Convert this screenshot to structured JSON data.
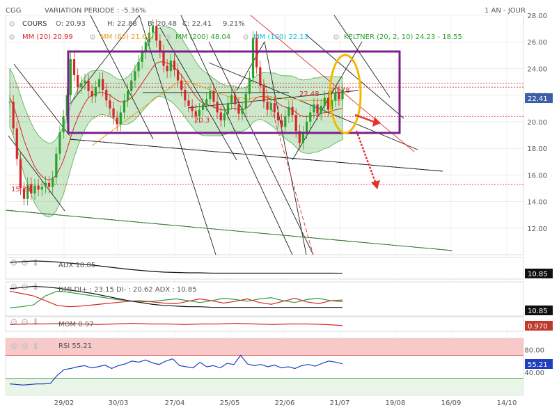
{
  "header": {
    "symbol": "CGG",
    "variation": "VARIATION PERIODE : -5.36%",
    "period": "1 AN - JOUR",
    "cours_label": "COURS",
    "open": "O: 20.93",
    "high": "H: 22.88",
    "low": "B: 20.48",
    "close": "C: 22.41",
    "change": "9.21%",
    "mm20": "MM (20) 20.99",
    "mm60": "MM (60) 21.62",
    "mm200": "MM (200) 48.04",
    "mm100": "MM (100) 22.13",
    "keltner": "KELTNER (20, 2, 10) 24.23 - 18.55"
  },
  "colors": {
    "price_up": "#2ca02c",
    "price_down": "#d62728",
    "mm20": "#d62728",
    "mm60": "#e8a020",
    "mm200": "#2ca02c",
    "mm100": "#17becf",
    "keltner_fill": "#8fcf8f",
    "box": "#7a1f8a",
    "ellipse": "#f5b800",
    "arrow": "#e53030",
    "rsi_band": "#f7c9c9",
    "rsi_line": "#1f3fbf"
  },
  "chart_data": [
    {
      "type": "line",
      "name": "price-candlestick",
      "ylim": [
        10,
        28
      ],
      "y_ticks": [
        12,
        14,
        16,
        18,
        20,
        22,
        24,
        26,
        28
      ],
      "x_ticks": [
        "29/02",
        "30/03",
        "27/04",
        "25/05",
        "22/06",
        "21/07",
        "19/08",
        "16/09",
        "14/10"
      ],
      "last_price_label": "22.41",
      "annotations": [
        "15.28",
        "22.48",
        "20.78",
        "20.3"
      ],
      "levels": [
        15.28,
        20.4,
        22.6,
        22.9
      ],
      "series": [
        {
          "name": "COURS",
          "values": [
            21.5,
            19.5,
            17.2,
            15.0,
            14.2,
            15.3,
            14.6,
            15.2,
            14.9,
            15.1,
            15.4,
            15.1,
            15.8,
            17.6,
            19.2,
            20.4,
            22.0,
            24.7,
            23.5,
            22.6,
            22.9,
            23.1,
            22.3,
            21.9,
            22.6,
            23.2,
            22.4,
            21.6,
            21.0,
            20.3,
            19.8,
            20.7,
            21.6,
            22.3,
            23.1,
            23.8,
            24.5,
            25.2,
            26.0,
            26.7,
            27.2,
            26.1,
            25.3,
            24.2,
            23.8,
            24.6,
            23.9,
            23.1,
            22.4,
            21.6,
            21.2,
            20.8,
            20.4,
            20.9,
            21.3,
            21.7,
            22.3,
            21.5,
            20.7,
            20.1,
            20.6,
            21.4,
            22.0,
            21.3,
            20.6,
            21.0,
            22.1,
            23.3,
            26.3,
            24.1,
            22.7,
            21.5,
            20.9,
            21.4,
            20.7,
            20.1,
            19.6,
            20.4,
            21.1,
            20.5,
            19.3,
            18.4,
            19.2,
            20.0,
            20.7,
            21.3,
            20.6,
            21.2,
            21.8,
            20.9,
            21.6,
            22.2,
            21.7,
            22.41
          ]
        },
        {
          "name": "MM (20)",
          "values": [
            21.8,
            21.2,
            20.4,
            19.5,
            18.6,
            17.9,
            17.2,
            16.6,
            16.2,
            15.9,
            15.7,
            15.6,
            15.7,
            16.0,
            16.5,
            17.1,
            17.9,
            18.8,
            19.6,
            20.3,
            20.9,
            21.4,
            21.8,
            22.0,
            22.1,
            22.2,
            22.2,
            22.1,
            22.0,
            21.8,
            21.6,
            21.5,
            21.5,
            21.6,
            21.8,
            22.1,
            22.5,
            22.9,
            23.3,
            23.7,
            24.1,
            24.4,
            24.5,
            24.5,
            24.4,
            24.3,
            24.1,
            23.8,
            23.5,
            23.1,
            22.7,
            22.3,
            21.9,
            21.6,
            21.4,
            21.3,
            21.2,
            21.1,
            21.0,
            20.9,
            20.9,
            20.9,
            21.0,
            21.0,
            20.9,
            20.9,
            21.0,
            21.2,
            21.6,
            21.8,
            21.9,
            21.9,
            21.8,
            21.7,
            21.6,
            21.4,
            21.2,
            21.1,
            21.0,
            20.9,
            20.7,
            20.5,
            20.4,
            20.4,
            20.4,
            20.5,
            20.5,
            20.6,
            20.7,
            20.7,
            20.8,
            20.9,
            20.95,
            20.99
          ]
        },
        {
          "name": "MM (60)",
          "values": [
            null,
            null,
            null,
            null,
            null,
            null,
            null,
            null,
            null,
            null,
            null,
            null,
            null,
            null,
            null,
            null,
            null,
            null,
            null,
            null,
            null,
            null,
            null,
            18.2,
            18.4,
            18.6,
            18.8,
            19.0,
            19.2,
            19.4,
            19.6,
            19.8,
            20.0,
            20.2,
            20.4,
            20.6,
            20.8,
            21.0,
            21.2,
            21.4,
            21.6,
            21.8,
            22.0,
            22.2,
            22.4,
            22.6,
            22.8,
            22.9,
            23.0,
            23.0,
            23.0,
            22.9,
            22.8,
            22.7,
            22.6,
            22.5,
            22.4,
            22.3,
            22.2,
            22.1,
            22.0,
            21.9,
            21.9,
            21.8,
            21.8,
            21.8,
            21.7,
            21.7,
            21.8,
            21.8,
            21.9,
            21.9,
            21.9,
            21.9,
            21.8,
            21.8,
            21.8,
            21.7,
            21.7,
            21.7,
            21.7,
            21.6,
            21.6,
            21.6,
            21.6,
            21.6,
            21.6,
            21.6,
            21.6,
            21.6,
            21.6,
            21.6,
            21.62,
            21.62
          ]
        }
      ]
    },
    {
      "type": "line",
      "name": "ADX",
      "label": "ADX 10.85",
      "last_value": "10.85",
      "series": [
        {
          "name": "ADX",
          "values": [
            42,
            44,
            46,
            45,
            43,
            40,
            37,
            34,
            30,
            26,
            22,
            19,
            16,
            14,
            13,
            12,
            12,
            11,
            11,
            11,
            11,
            11,
            11,
            11,
            11,
            11,
            11,
            11,
            10.85
          ]
        }
      ]
    },
    {
      "type": "line",
      "name": "DMI",
      "label": "DMI DI+ : 23.15 DI- : 20.62 ADX : 10.85",
      "last_value": "10.85",
      "series": [
        {
          "name": "DI+",
          "values": [
            10,
            12,
            15,
            30,
            38,
            36,
            33,
            30,
            27,
            24,
            22,
            20,
            21,
            23,
            25,
            22,
            19,
            22,
            26,
            24,
            21,
            25,
            27,
            22,
            19,
            24,
            26,
            22,
            23.15
          ]
        },
        {
          "name": "DI-",
          "values": [
            38,
            34,
            30,
            22,
            14,
            12,
            13,
            15,
            17,
            19,
            21,
            22,
            20,
            18,
            17,
            21,
            25,
            22,
            18,
            21,
            25,
            19,
            16,
            21,
            26,
            20,
            17,
            22,
            20.62
          ]
        },
        {
          "name": "ADX",
          "values": [
            42,
            44,
            46,
            45,
            43,
            40,
            37,
            34,
            30,
            26,
            22,
            19,
            16,
            14,
            13,
            12,
            12,
            11,
            11,
            11,
            11,
            11,
            11,
            11,
            11,
            11,
            11,
            11,
            10.85
          ]
        }
      ]
    },
    {
      "type": "line",
      "name": "MOM",
      "label": "MOM 0.97",
      "last_value": "0.970",
      "series": [
        {
          "name": "MOM",
          "values": [
            0.99,
            1.0,
            1.0,
            1.01,
            1.0,
            0.99,
            1.0,
            1.01,
            1.0,
            1.0,
            0.99,
            1.0,
            1.0,
            1.01,
            1.0,
            0.99,
            1.0,
            1.0,
            0.99,
            0.97
          ]
        }
      ]
    },
    {
      "type": "line",
      "name": "RSI",
      "label": "RSI 55.21",
      "last_value": "55.21",
      "ylim": [
        0,
        100
      ],
      "y_ticks": [
        40,
        60,
        80
      ],
      "series": [
        {
          "name": "RSI",
          "values": [
            20,
            19,
            18,
            19,
            20,
            20,
            21,
            35,
            45,
            47,
            50,
            52,
            48,
            50,
            53,
            47,
            52,
            55,
            60,
            58,
            62,
            57,
            54,
            60,
            64,
            52,
            50,
            48,
            58,
            50,
            52,
            48,
            56,
            54,
            70,
            55,
            52,
            54,
            50,
            53,
            48,
            50,
            47,
            52,
            54,
            51,
            56,
            60,
            58,
            55.21
          ]
        }
      ]
    }
  ]
}
